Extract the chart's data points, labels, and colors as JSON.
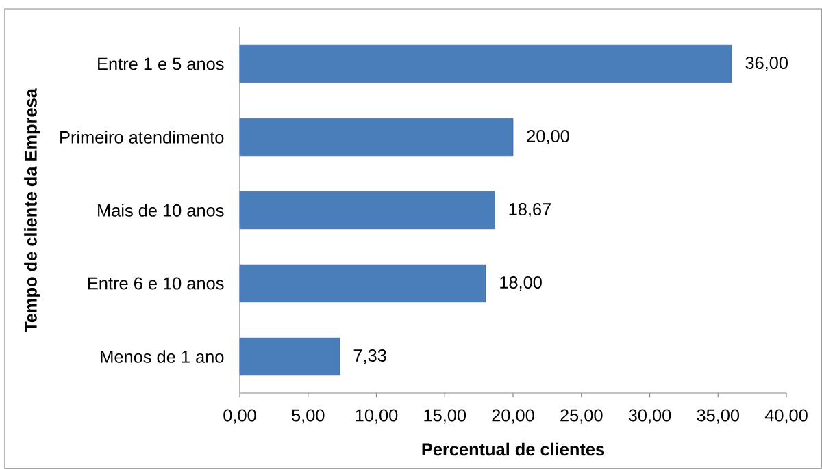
{
  "chart_data": {
    "type": "bar",
    "orientation": "horizontal",
    "xlabel": "Percentual de clientes",
    "ylabel": "Tempo de cliente da Empresa",
    "categories": [
      "Entre 1 e 5 anos",
      "Primeiro atendimento",
      "Mais de 10 anos",
      "Entre 6 e 10 anos",
      "Menos de 1 ano"
    ],
    "values": [
      36,
      20,
      18.67,
      18,
      7.33
    ],
    "value_labels": [
      "36,00",
      "20,00",
      "18,67",
      "18,00",
      "7,33"
    ],
    "color": "#4a7ebb",
    "xlim": [
      0,
      40
    ],
    "xticks": [
      {
        "value": 0,
        "label": "0,00"
      },
      {
        "value": 5,
        "label": "5,00"
      },
      {
        "value": 10,
        "label": "10,00"
      },
      {
        "value": 15,
        "label": "15,00"
      },
      {
        "value": 20,
        "label": "20,00"
      },
      {
        "value": 25,
        "label": "25,00"
      },
      {
        "value": 30,
        "label": "30,00"
      },
      {
        "value": 35,
        "label": "35,00"
      },
      {
        "value": 40,
        "label": "40,00"
      }
    ]
  }
}
